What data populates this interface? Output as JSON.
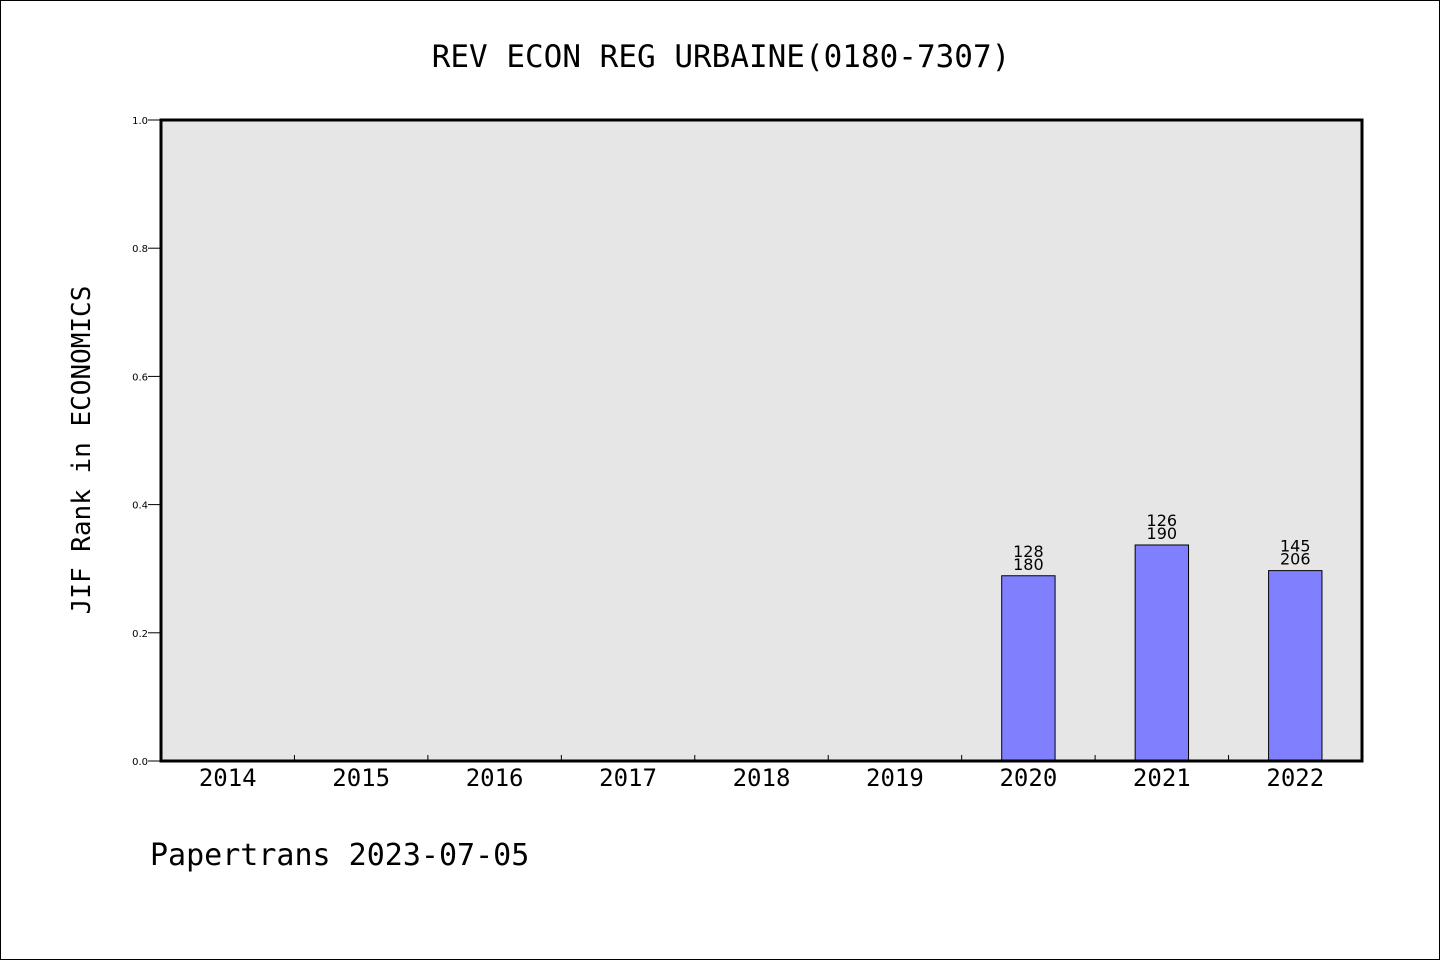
{
  "chart_data": {
    "type": "bar",
    "title": "REV ECON REG URBAINE(0180-7307)",
    "xlabel": "",
    "ylabel": "JIF Rank in ECONOMICS",
    "ylim": [
      0.0,
      1.0
    ],
    "yticks": [
      "0.0",
      "0.2",
      "0.4",
      "0.6",
      "0.8",
      "1.0"
    ],
    "ytick_values": [
      0.0,
      0.2,
      0.4,
      0.6,
      0.8,
      1.0
    ],
    "categories": [
      "2014",
      "2015",
      "2016",
      "2017",
      "2018",
      "2019",
      "2020",
      "2021",
      "2022"
    ],
    "values": [
      null,
      null,
      null,
      null,
      null,
      null,
      0.289,
      0.337,
      0.297
    ],
    "rank": [
      null,
      null,
      null,
      null,
      null,
      null,
      "128",
      "126",
      "145"
    ],
    "total": [
      null,
      null,
      null,
      null,
      null,
      null,
      "180",
      "190",
      "206"
    ],
    "grid": false,
    "legend": "none"
  },
  "footer": "Papertrans 2023-07-05",
  "colors": {
    "bar_fill": "#8080ff",
    "bar_stroke": "#000000",
    "plot_background": "#e6e6e6",
    "page_background": "#ffffff"
  }
}
